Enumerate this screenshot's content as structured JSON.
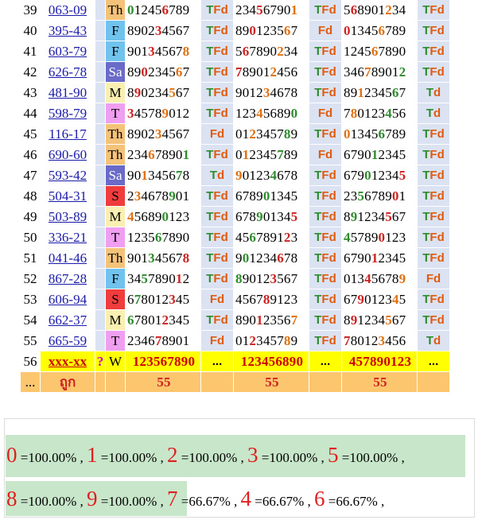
{
  "rows": [
    {
      "num": "39",
      "code": "063-09",
      "day": "Th",
      "dayColor": "#f5c27a",
      "d1": "012456789",
      "r1": "TFd",
      "d2": "234567901",
      "r2": "TFd",
      "d3": "568901234",
      "r3": "TFd"
    },
    {
      "num": "40",
      "code": "395-43",
      "day": "F",
      "dayColor": "#6fc3ec",
      "d1": "890234567",
      "r1": "TFd",
      "d2": "890123567",
      "r2": "Fd",
      "d3": "013456789",
      "r3": "TFd"
    },
    {
      "num": "41",
      "code": "603-79",
      "day": "F",
      "dayColor": "#6fc3ec",
      "d1": "901345678",
      "r1": "TFd",
      "d2": "567890234",
      "r2": "TFd",
      "d3": "124567890",
      "r3": "TFd"
    },
    {
      "num": "42",
      "code": "626-78",
      "day": "Sa",
      "dayColor": "#6a6ac8",
      "d1": "890234567",
      "r1": "TFd",
      "d2": "789012456",
      "r2": "TFd",
      "d3": "346789012",
      "r3": "TFd"
    },
    {
      "num": "43",
      "code": "481-90",
      "day": "M",
      "dayColor": "#f8efb0",
      "d1": "890234567",
      "r1": "TFd",
      "d2": "901234678",
      "r2": "TFd",
      "d3": "891234567",
      "r3": "Td"
    },
    {
      "num": "44",
      "code": "598-79",
      "day": "T",
      "dayColor": "#f09ef0",
      "d1": "345789012",
      "r1": "TFd",
      "d2": "123456890",
      "r2": "Fd",
      "d3": "780123456",
      "r3": "Td"
    },
    {
      "num": "45",
      "code": "116-17",
      "day": "Th",
      "dayColor": "#f5c27a",
      "d1": "890234567",
      "r1": "Fd",
      "d2": "012345789",
      "r2": "TFd",
      "d3": "013456789",
      "r3": "TFd"
    },
    {
      "num": "46",
      "code": "690-60",
      "day": "Th",
      "dayColor": "#f5c27a",
      "d1": "234678901",
      "r1": "TFd",
      "d2": "012345789",
      "r2": "Fd",
      "d3": "679012345",
      "r3": "TFd"
    },
    {
      "num": "47",
      "code": "593-42",
      "day": "Sa",
      "dayColor": "#6a6ac8",
      "d1": "901345678",
      "r1": "Td",
      "d2": "901234678",
      "r2": "TFd",
      "d3": "679012345",
      "r3": "TFd"
    },
    {
      "num": "48",
      "code": "504-31",
      "day": "S",
      "dayColor": "#f03c3c",
      "d1": "234678901",
      "r1": "TFd",
      "d2": "678901345",
      "r2": "TFd",
      "d3": "235678901",
      "r3": "TFd"
    },
    {
      "num": "49",
      "code": "503-89",
      "day": "M",
      "dayColor": "#f8efb0",
      "d1": "456890123",
      "r1": "TFd",
      "d2": "678901345",
      "r2": "TFd",
      "d3": "891234567",
      "r3": "TFd"
    },
    {
      "num": "50",
      "code": "336-21",
      "day": "T",
      "dayColor": "#f09ef0",
      "d1": "123567890",
      "r1": "TFd",
      "d2": "456789123",
      "r2": "TFd",
      "d3": "457890123",
      "r3": "TFd"
    },
    {
      "num": "51",
      "code": "041-46",
      "day": "Th",
      "dayColor": "#f5c27a",
      "d1": "901345678",
      "r1": "TFd",
      "d2": "901234678",
      "r2": "TFd",
      "d3": "679012345",
      "r3": "TFd"
    },
    {
      "num": "52",
      "code": "867-28",
      "day": "F",
      "dayColor": "#6fc3ec",
      "d1": "345789012",
      "r1": "TFd",
      "d2": "890123567",
      "r2": "TFd",
      "d3": "013456789",
      "r3": "Fd"
    },
    {
      "num": "53",
      "code": "606-94",
      "day": "S",
      "dayColor": "#f03c3c",
      "d1": "678012345",
      "r1": "Fd",
      "d2": "456789123",
      "r2": "TFd",
      "d3": "679012345",
      "r3": "TFd"
    },
    {
      "num": "54",
      "code": "662-37",
      "day": "M",
      "dayColor": "#f8efb0",
      "d1": "678012345",
      "r1": "TFd",
      "d2": "890123567",
      "r2": "TFd",
      "d3": "891234567",
      "r3": "TFd"
    },
    {
      "num": "55",
      "code": "665-59",
      "day": "T",
      "dayColor": "#f09ef0",
      "d1": "234678901",
      "r1": "Fd",
      "d2": "012345789",
      "r2": "TFd",
      "d3": "780123456",
      "r3": "Td"
    }
  ],
  "predict": {
    "num": "56",
    "code": "xxx-xx",
    "mark": "?",
    "day": "W",
    "dayColor": "#6ee26e",
    "d1": "123567890",
    "r1": "...",
    "d2": "123456890",
    "r2": "...",
    "d3": "457890123",
    "r3": "..."
  },
  "summary": {
    "dots": "...",
    "label": "ถูก",
    "c1": "55",
    "c2": "55",
    "c3": "55"
  },
  "stats": [
    {
      "digit": "0",
      "text": " =100.00% , "
    },
    {
      "digit": "1",
      "text": " =100.00% , "
    },
    {
      "digit": "2",
      "text": " =100.00% , "
    },
    {
      "digit": "3",
      "text": " =100.00% , "
    },
    {
      "digit": "5",
      "text": " =100.00% ,"
    },
    {
      "digit": "8",
      "text": " =100.00% , "
    },
    {
      "digit": "9",
      "text": " =100.00% "
    },
    {
      "digit": "7",
      "text": " , 7 =66.67% , "
    },
    {
      "digit": "4",
      "text": " =66.67% , "
    },
    {
      "digit": "6",
      "text": " =66.67% ,"
    }
  ],
  "colors": {
    "rowBlue": "#dbe3f3",
    "predictYellow": "#ffff00",
    "summaryOrange": "#fcc66e",
    "statGreen": "#c8e6c9",
    "digitRed": "#e02020"
  }
}
